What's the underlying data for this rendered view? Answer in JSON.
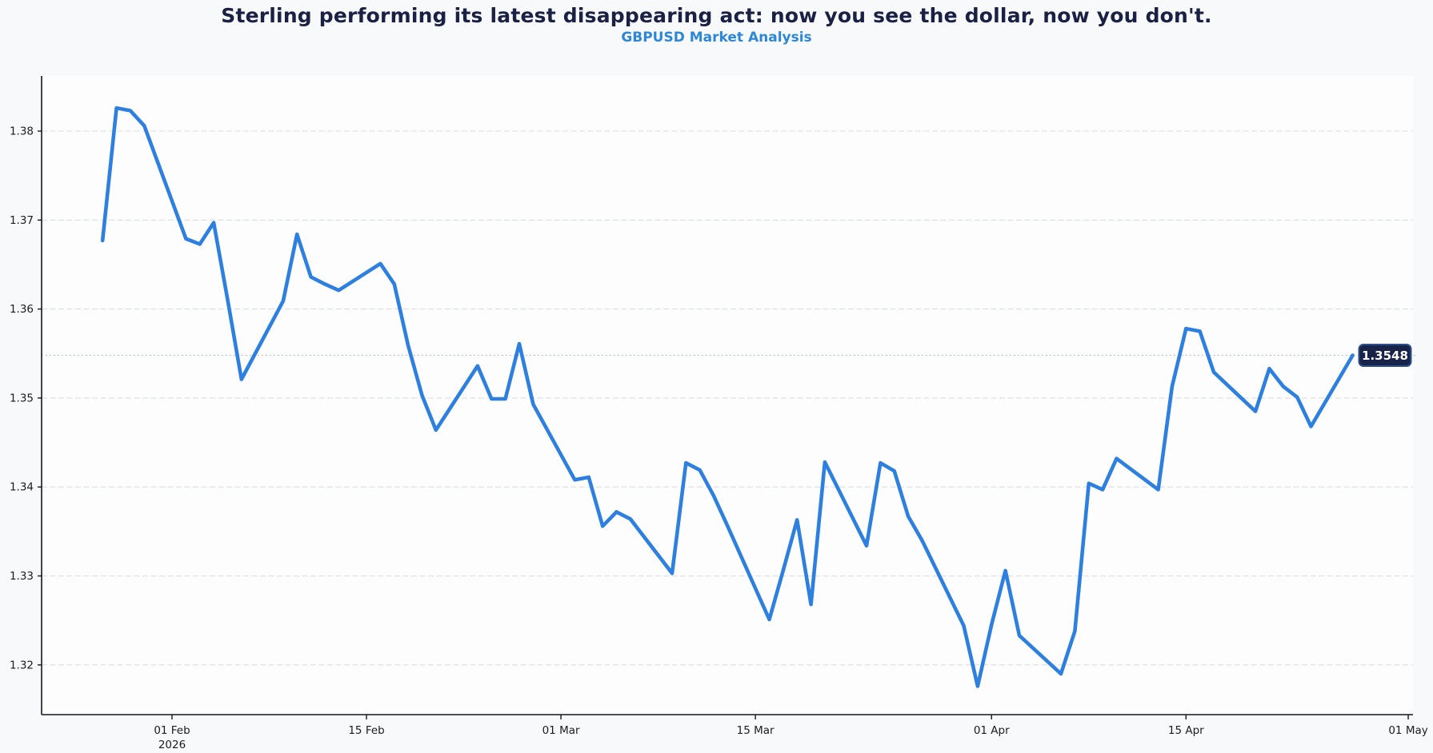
{
  "chart_data": {
    "type": "line",
    "title": "Sterling performing its latest disappearing act: now you see the dollar, now you don't.",
    "subtitle": "GBPUSD Market Analysis",
    "pair": "GBPUSD",
    "price_label": "1.3548",
    "current_price": 1.3548,
    "line_color": "#2e80e0",
    "price_box_fill": "#172349",
    "price_box_border": "#2d4f8d",
    "grid_color": "#d9dde3",
    "price_line_color": "#aeb9cb",
    "axis_color": "#16161e",
    "tick_label_color": "#1c1c1c",
    "legend_position": "none",
    "grid": "horizontal-dashed",
    "ylim": [
      1.3144,
      1.3862
    ],
    "y_ticks": [
      {
        "value": 1.38,
        "label": "1.38"
      },
      {
        "value": 1.37,
        "label": "1.37"
      },
      {
        "value": 1.36,
        "label": "1.36"
      },
      {
        "value": 1.35,
        "label": "1.35"
      },
      {
        "value": 1.34,
        "label": "1.34"
      },
      {
        "value": 1.33,
        "label": "1.33"
      },
      {
        "value": 1.32,
        "label": "1.32"
      }
    ],
    "x_ticks": [
      {
        "date": "2026-02-01",
        "label": "01 Feb",
        "sublabel": "2026"
      },
      {
        "date": "2026-02-15",
        "label": "15 Feb"
      },
      {
        "date": "2026-03-01",
        "label": "01 Mar"
      },
      {
        "date": "2026-03-15",
        "label": "15 Mar"
      },
      {
        "date": "2026-04-01",
        "label": "01 Apr"
      },
      {
        "date": "2026-04-15",
        "label": "15 Apr"
      },
      {
        "date": "2026-05-01",
        "label": "01 May"
      }
    ],
    "series": [
      {
        "name": "GBPUSD",
        "points": [
          [
            "2026-01-27",
            1.3677
          ],
          [
            "2026-01-28",
            1.3826
          ],
          [
            "2026-01-29",
            1.3823
          ],
          [
            "2026-01-30",
            1.3806
          ],
          [
            "2026-02-02",
            1.3679
          ],
          [
            "2026-02-03",
            1.3673
          ],
          [
            "2026-02-04",
            1.3697
          ],
          [
            "2026-02-05",
            1.3611
          ],
          [
            "2026-02-06",
            1.3521
          ],
          [
            "2026-02-09",
            1.3609
          ],
          [
            "2026-02-10",
            1.3684
          ],
          [
            "2026-02-11",
            1.3636
          ],
          [
            "2026-02-12",
            1.3628
          ],
          [
            "2026-02-13",
            1.3621
          ],
          [
            "2026-02-16",
            1.3651
          ],
          [
            "2026-02-17",
            1.3628
          ],
          [
            "2026-02-18",
            1.3559
          ],
          [
            "2026-02-19",
            1.3503
          ],
          [
            "2026-02-20",
            1.3464
          ],
          [
            "2026-02-23",
            1.3536
          ],
          [
            "2026-02-24",
            1.3499
          ],
          [
            "2026-02-25",
            1.3499
          ],
          [
            "2026-02-26",
            1.3561
          ],
          [
            "2026-02-27",
            1.3493
          ],
          [
            "2026-03-02",
            1.3408
          ],
          [
            "2026-03-03",
            1.3411
          ],
          [
            "2026-03-04",
            1.3356
          ],
          [
            "2026-03-05",
            1.3372
          ],
          [
            "2026-03-06",
            1.3364
          ],
          [
            "2026-03-09",
            1.3303
          ],
          [
            "2026-03-10",
            1.3427
          ],
          [
            "2026-03-11",
            1.3419
          ],
          [
            "2026-03-12",
            1.339
          ],
          [
            "2026-03-13",
            1.3356
          ],
          [
            "2026-03-16",
            1.3251
          ],
          [
            "2026-03-17",
            1.3306
          ],
          [
            "2026-03-18",
            1.3363
          ],
          [
            "2026-03-19",
            1.3268
          ],
          [
            "2026-03-20",
            1.3428
          ],
          [
            "2026-03-23",
            1.3334
          ],
          [
            "2026-03-24",
            1.3427
          ],
          [
            "2026-03-25",
            1.3418
          ],
          [
            "2026-03-26",
            1.3367
          ],
          [
            "2026-03-27",
            1.334
          ],
          [
            "2026-03-30",
            1.3244
          ],
          [
            "2026-03-31",
            1.3176
          ],
          [
            "2026-04-01",
            1.3245
          ],
          [
            "2026-04-02",
            1.3306
          ],
          [
            "2026-04-03",
            1.3233
          ],
          [
            "2026-04-06",
            1.319
          ],
          [
            "2026-04-07",
            1.3238
          ],
          [
            "2026-04-08",
            1.3404
          ],
          [
            "2026-04-09",
            1.3397
          ],
          [
            "2026-04-10",
            1.3432
          ],
          [
            "2026-04-13",
            1.3397
          ],
          [
            "2026-04-14",
            1.3513
          ],
          [
            "2026-04-15",
            1.3578
          ],
          [
            "2026-04-16",
            1.3575
          ],
          [
            "2026-04-17",
            1.3529
          ],
          [
            "2026-04-20",
            1.3485
          ],
          [
            "2026-04-21",
            1.3533
          ],
          [
            "2026-04-22",
            1.3513
          ],
          [
            "2026-04-23",
            1.3501
          ],
          [
            "2026-04-24",
            1.3468
          ],
          [
            "2026-04-27",
            1.3548
          ]
        ]
      }
    ]
  }
}
